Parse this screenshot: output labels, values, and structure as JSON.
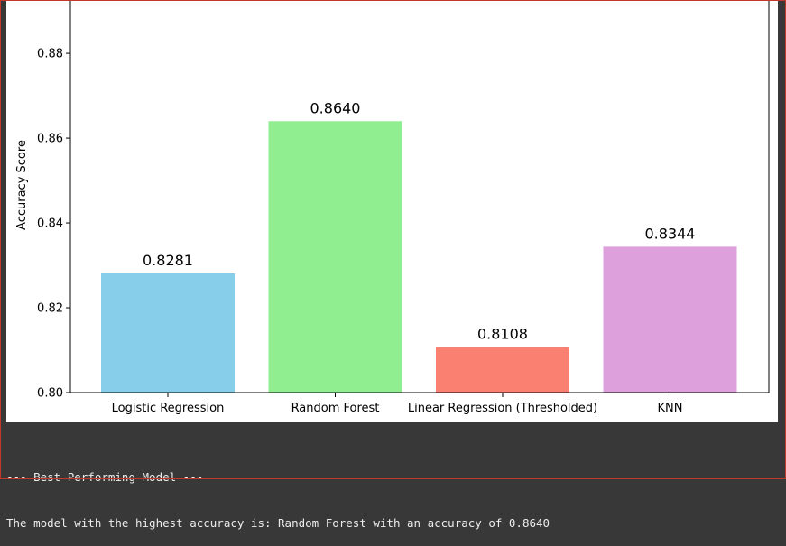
{
  "chart_data": {
    "type": "bar",
    "title": "",
    "xlabel": "",
    "ylabel": "Accuracy Score",
    "ylim": [
      0.8,
      0.893
    ],
    "yticks": [
      0.8,
      0.82,
      0.84,
      0.86,
      0.88
    ],
    "ytick_labels": [
      "0.80",
      "0.82",
      "0.84",
      "0.86",
      "0.88"
    ],
    "categories": [
      "Logistic Regression",
      "Random Forest",
      "Linear Regression (Thresholded)",
      "KNN"
    ],
    "values": [
      0.8281,
      0.864,
      0.8108,
      0.8344
    ],
    "value_labels": [
      "0.8281",
      "0.8640",
      "0.8108",
      "0.8344"
    ],
    "colors": [
      "#87ceeb",
      "#90ee90",
      "#fa8072",
      "#dda0dd"
    ],
    "grid": false,
    "legend": "none"
  },
  "console": {
    "line1": "--- Best Performing Model ---",
    "line2": "The model with the highest accuracy is: Random Forest with an accuracy of 0.8640"
  }
}
